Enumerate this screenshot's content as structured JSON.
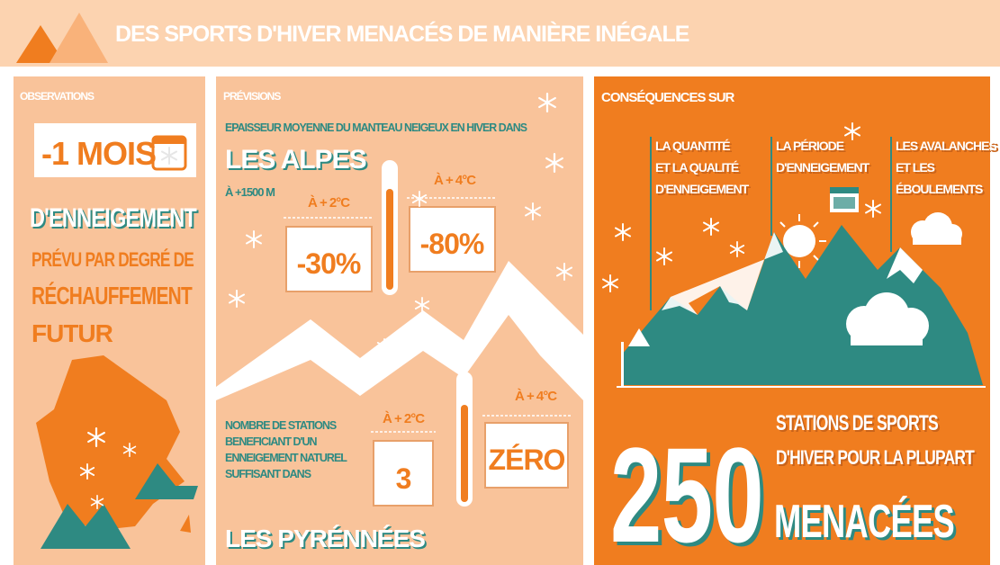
{
  "header": {
    "title": "DES SPORTS D'HIVER MENACÉS DE MANIÈRE INÉGALE"
  },
  "observations": {
    "heading": "OBSERVATIONS",
    "highlight": "-1 MOIS",
    "line1": "D'ENNEIGEMENT",
    "line2": "PRÉVU PAR DEGRÉ DE",
    "line3": "RÉCHAUFFEMENT",
    "line4": "FUTUR"
  },
  "previsions": {
    "heading": "PRÉVISIONS",
    "alpes": {
      "description": "EPAISSEUR MOYENNE DU MANTEAU NEIGEUX EN HIVER DANS",
      "region": "LES ALPES",
      "altitude": "À +1500 M",
      "scenarios": [
        {
          "label": "À + 2°C",
          "value": "-30%"
        },
        {
          "label": "À + 4°C",
          "value": "-80%"
        }
      ]
    },
    "pyrenees": {
      "description": [
        "NOMBRE DE STATIONS",
        "BENEFICIANT D'UN",
        "ENNEIGEMENT NATUREL",
        "SUFFISANT DANS"
      ],
      "region": "LES PYRÉNNÉES",
      "scenarios": [
        {
          "label": "À + 2°C",
          "value": "3"
        },
        {
          "label": "À + 4°C",
          "value": "ZÉRO"
        }
      ]
    }
  },
  "consequences": {
    "heading": "CONSÉQUENCES SUR",
    "items": [
      [
        "LA QUANTITÉ",
        "ET LA QUALITÉ",
        "D'ENNEIGEMENT"
      ],
      [
        "LA PÉRIODE",
        "D'ENNEIGEMENT"
      ],
      [
        "LES AVALANCHES",
        "ET LES",
        "ÉBOULEMENTS"
      ]
    ],
    "number": "250",
    "line1": "STATIONS DE SPORTS",
    "line2": "D'HIVER POUR LA PLUPART",
    "emphasis": "MENACÉES"
  }
}
